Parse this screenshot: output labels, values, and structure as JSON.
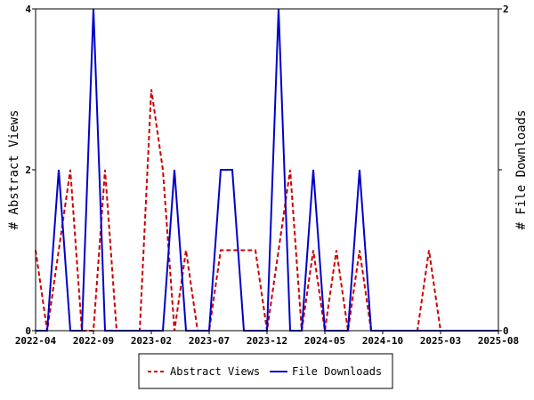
{
  "chart_data": {
    "type": "line",
    "x_dates": [
      "2022-04",
      "2022-05",
      "2022-06",
      "2022-07",
      "2022-08",
      "2022-09",
      "2022-10",
      "2022-11",
      "2022-12",
      "2023-01",
      "2023-02",
      "2023-03",
      "2023-04",
      "2023-05",
      "2023-06",
      "2023-07",
      "2023-08",
      "2023-09",
      "2023-10",
      "2023-11",
      "2023-12",
      "2024-01",
      "2024-02",
      "2024-03",
      "2024-04",
      "2024-05",
      "2024-06",
      "2024-07",
      "2024-08",
      "2024-09",
      "2024-10",
      "2024-11",
      "2024-12",
      "2025-01",
      "2025-02",
      "2025-03",
      "2025-04",
      "2025-05",
      "2025-06",
      "2025-07",
      "2025-08"
    ],
    "x_tick_labels": [
      "2022-04",
      "2022-09",
      "2023-02",
      "2023-07",
      "2023-12",
      "2024-05",
      "2024-10",
      "2025-03",
      "2025-08"
    ],
    "x_tick_dates": [
      "2022-04",
      "2022-09",
      "2023-02",
      "2023-07",
      "2023-12",
      "2024-05",
      "2024-10",
      "2025-03",
      "2025-08"
    ],
    "series": [
      {
        "name": "Abstract Views",
        "axis": "left",
        "color": "#cc0000",
        "dash": "dashed",
        "values": [
          1,
          0,
          1,
          2,
          0,
          0,
          2,
          0,
          0,
          0,
          3,
          2,
          0,
          1,
          0,
          0,
          1,
          1,
          1,
          1,
          0,
          1,
          2,
          0,
          1,
          0,
          1,
          0,
          1,
          0,
          0,
          0,
          0,
          0,
          1,
          0,
          0,
          0,
          0,
          0,
          0
        ]
      },
      {
        "name": "File Downloads",
        "axis": "right",
        "color": "#0000cc",
        "dash": "solid",
        "values": [
          0,
          0,
          1,
          0,
          0,
          2,
          0,
          0,
          0,
          0,
          0,
          0,
          1,
          0,
          0,
          0,
          1,
          1,
          0,
          0,
          0,
          2,
          0,
          0,
          1,
          0,
          0,
          0,
          1,
          0,
          0,
          0,
          0,
          0,
          0,
          0,
          0,
          0,
          0,
          0,
          0
        ]
      }
    ],
    "ylabel": "# Abstract Views",
    "y2label": "# File Downloads",
    "ylim": [
      0,
      4
    ],
    "y2lim": [
      0,
      2
    ],
    "y_ticks": [
      "0",
      "2",
      "4"
    ],
    "y2_ticks": [
      "0",
      "1",
      "2"
    ],
    "legend_position": "bottom-center",
    "grid": false
  }
}
